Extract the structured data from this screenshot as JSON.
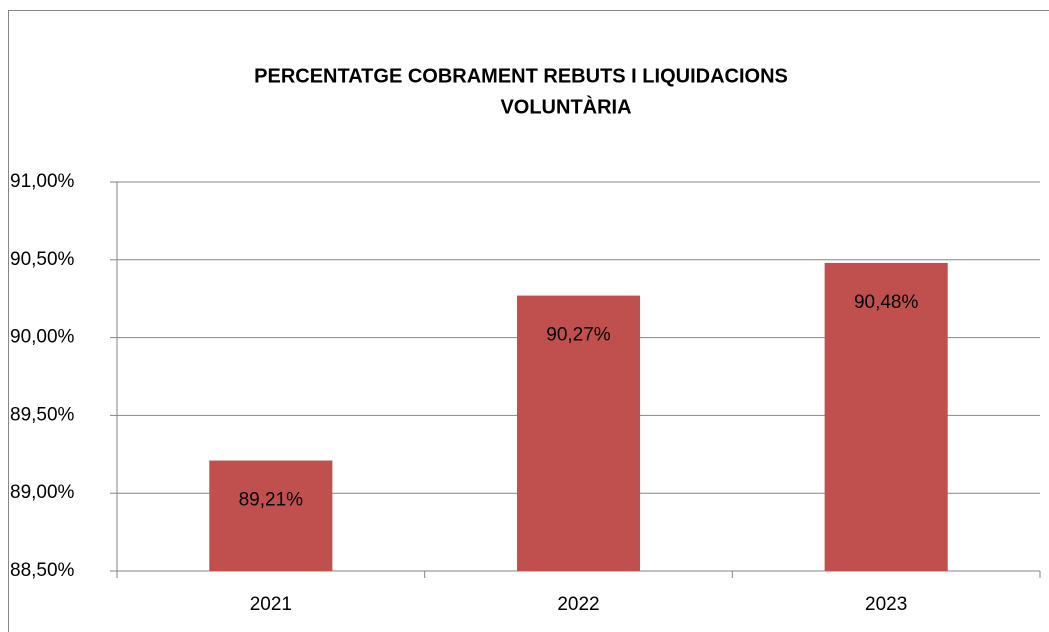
{
  "chart_data": {
    "type": "bar",
    "title": [
      "PERCENTATGE COBRAMENT REBUTS I  LIQUIDACIONS",
      "VOLUNTÀRIA"
    ],
    "categories": [
      "2021",
      "2022",
      "2023"
    ],
    "values": [
      89.21,
      90.27,
      90.48
    ],
    "value_labels": [
      "89,21%",
      "90,27%",
      "90,48%"
    ],
    "color": "#c0504d",
    "ylim": [
      88.5,
      91
    ],
    "yticks": [
      {
        "value": 88.5,
        "label": "88,50%"
      },
      {
        "value": 89,
        "label": "89,00%"
      },
      {
        "value": 89.5,
        "label": "89,50%"
      },
      {
        "value": 90,
        "label": "90,00%"
      },
      {
        "value": 90.5,
        "label": "90,50%"
      },
      {
        "value": 91,
        "label": "91,00%"
      }
    ],
    "grid": true
  }
}
